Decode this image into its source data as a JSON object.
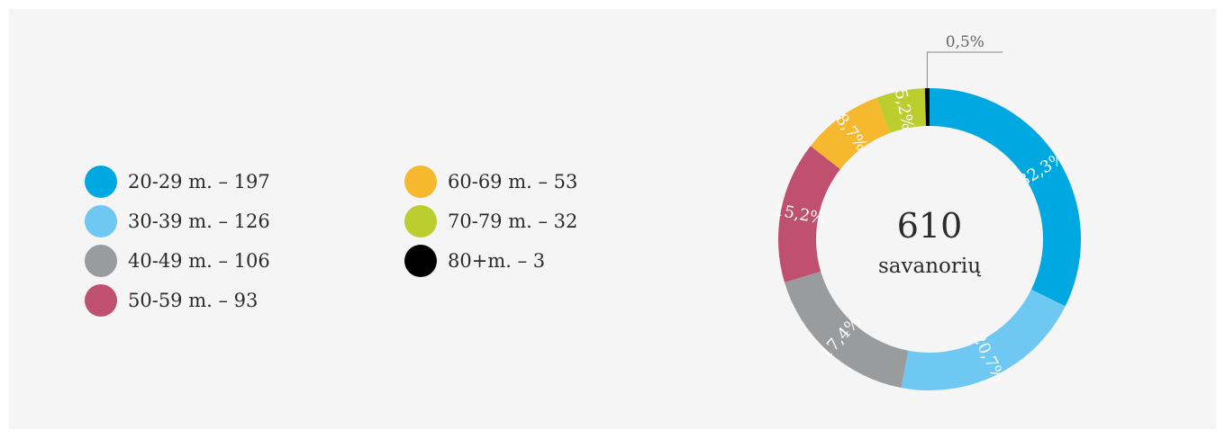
{
  "chart_data": {
    "type": "pie",
    "center_value": "610",
    "center_label": "savanorių",
    "series": [
      {
        "name": "20-29 m.",
        "count": 197,
        "percent_label": "32,3%",
        "value": 32.3,
        "color": "#00a8e1"
      },
      {
        "name": "30-39 m.",
        "count": 126,
        "percent_label": "20,7%",
        "value": 20.7,
        "color": "#6ec8f1"
      },
      {
        "name": "40-49 m.",
        "count": 106,
        "percent_label": "17,4%",
        "value": 17.4,
        "color": "#9a9b9d"
      },
      {
        "name": "50-59 m.",
        "count": 93,
        "percent_label": "15,2%",
        "value": 15.2,
        "color": "#c0506f"
      },
      {
        "name": "60-69 m.",
        "count": 53,
        "percent_label": "8,7%",
        "value": 8.7,
        "color": "#f6b82f"
      },
      {
        "name": "70-79 m.",
        "count": 32,
        "percent_label": "5,2%",
        "value": 5.2,
        "color": "#bccd2e"
      },
      {
        "name": "80+m.",
        "count": 3,
        "percent_label": "0,5%",
        "value": 0.5,
        "color": "#000000"
      }
    ],
    "legend": [
      "20-29 m. – 197",
      "30-39 m. – 126",
      "40-49 m. – 106",
      "50-59 m. – 93",
      "60-69 m. – 53",
      "70-79 m. – 32",
      "80+m. – 3"
    ],
    "legend_placement": "left"
  }
}
